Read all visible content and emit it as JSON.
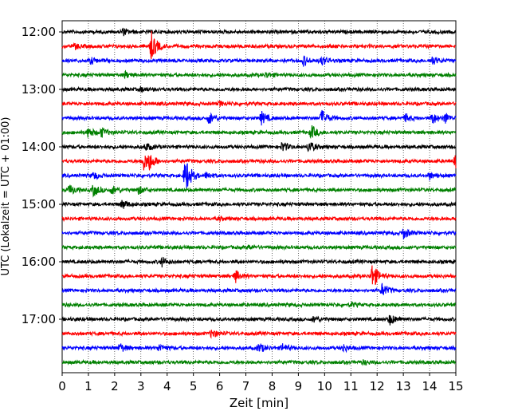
{
  "chart_data": {
    "type": "line",
    "subtype": "helicorder",
    "title": "",
    "xlabel": "Zeit  [min]",
    "ylabel": "UTC (Lokalzeit = UTC + 01:00)",
    "xlim": [
      0,
      15
    ],
    "x_ticks": [
      "0",
      "1",
      "2",
      "3",
      "4",
      "5",
      "6",
      "7",
      "8",
      "9",
      "10",
      "11",
      "12",
      "13",
      "14",
      "15"
    ],
    "y_tick_labels": [
      "12:00",
      "13:00",
      "14:00",
      "15:00",
      "16:00",
      "17:00"
    ],
    "grid_x": "dotted vertical lines at each minute",
    "trace_interval_minutes": 15,
    "trace_colors": [
      "#000000",
      "#ff0000",
      "#0000ff",
      "#008000"
    ],
    "traces": [
      {
        "start": "12:00",
        "events": [
          [
            2.3,
            0.7
          ]
        ]
      },
      {
        "start": "12:15",
        "events": [
          [
            3.4,
            3.0
          ],
          [
            0.5,
            0.5
          ]
        ]
      },
      {
        "start": "12:30",
        "events": [
          [
            1.1,
            0.6
          ],
          [
            9.2,
            1.0
          ],
          [
            9.9,
            0.9
          ],
          [
            14.1,
            0.8
          ]
        ]
      },
      {
        "start": "12:45",
        "events": [
          [
            2.4,
            0.6
          ],
          [
            7.8,
            0.5
          ]
        ]
      },
      {
        "start": "13:00",
        "events": [
          [
            3.0,
            0.4
          ]
        ]
      },
      {
        "start": "13:15",
        "events": [
          [
            6.0,
            0.4
          ]
        ]
      },
      {
        "start": "13:30",
        "events": [
          [
            5.6,
            1.2
          ],
          [
            7.6,
            1.3
          ],
          [
            9.9,
            1.6
          ],
          [
            13.1,
            0.8
          ],
          [
            14.1,
            1.2
          ],
          [
            14.6,
            1.0
          ]
        ]
      },
      {
        "start": "13:45",
        "events": [
          [
            1.0,
            1.0
          ],
          [
            1.5,
            0.9
          ],
          [
            9.5,
            1.4
          ]
        ]
      },
      {
        "start": "14:00",
        "events": [
          [
            3.2,
            0.8
          ],
          [
            8.4,
            1.0
          ],
          [
            9.4,
            1.2
          ]
        ]
      },
      {
        "start": "14:15",
        "events": [
          [
            3.1,
            1.8
          ],
          [
            3.3,
            1.5
          ],
          [
            15.0,
            2.0
          ]
        ]
      },
      {
        "start": "14:30",
        "events": [
          [
            4.7,
            3.8
          ],
          [
            1.2,
            0.7
          ],
          [
            5.5,
            0.7
          ],
          [
            14.0,
            0.6
          ]
        ]
      },
      {
        "start": "14:45",
        "events": [
          [
            0.3,
            1.0
          ],
          [
            1.2,
            1.2
          ],
          [
            1.9,
            0.8
          ],
          [
            2.9,
            0.8
          ]
        ]
      },
      {
        "start": "15:00",
        "events": [
          [
            2.3,
            0.9
          ]
        ]
      },
      {
        "start": "15:15",
        "events": [
          [
            6.0,
            0.3
          ]
        ]
      },
      {
        "start": "15:30",
        "events": [
          [
            13.0,
            1.1
          ]
        ]
      },
      {
        "start": "15:45",
        "events": [
          [
            7.1,
            0.4
          ]
        ]
      },
      {
        "start": "16:00",
        "events": [
          [
            3.8,
            0.9
          ]
        ]
      },
      {
        "start": "16:15",
        "events": [
          [
            6.6,
            1.2
          ],
          [
            11.8,
            1.5
          ],
          [
            11.85,
            1.3
          ]
        ]
      },
      {
        "start": "16:30",
        "events": [
          [
            12.2,
            1.4
          ]
        ]
      },
      {
        "start": "16:45",
        "events": [
          [
            11.0,
            0.4
          ]
        ]
      },
      {
        "start": "17:00",
        "events": [
          [
            9.6,
            0.6
          ],
          [
            12.5,
            1.1
          ]
        ]
      },
      {
        "start": "17:15",
        "events": [
          [
            5.7,
            0.9
          ]
        ]
      },
      {
        "start": "17:30",
        "events": [
          [
            2.2,
            0.9
          ],
          [
            3.7,
            0.8
          ],
          [
            7.5,
            1.0
          ],
          [
            8.4,
            0.8
          ],
          [
            10.7,
            0.8
          ]
        ]
      },
      {
        "start": "17:45",
        "events": [
          [
            11.5,
            0.4
          ]
        ]
      }
    ]
  }
}
